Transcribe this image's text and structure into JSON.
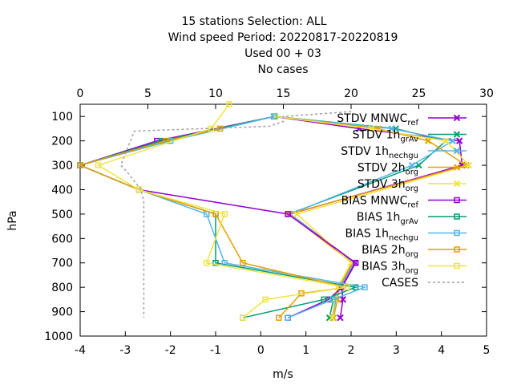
{
  "chart_data": {
    "type": "line",
    "title_lines": [
      "15 stations Selection: ALL",
      "Wind speed  Period: 20220817-20220819",
      "Used  00 + 03",
      "No cases"
    ],
    "xlabel": "m/s",
    "ylabel": "hPa",
    "xlim": [
      -4,
      5
    ],
    "x_ticks": [
      -4,
      -3,
      -2,
      -1,
      0,
      1,
      2,
      3,
      4,
      5
    ],
    "x_ticks_labels": [
      "-4",
      "-3",
      "-2",
      "-1",
      "0",
      "1",
      "2",
      "3",
      "4",
      "5"
    ],
    "x2lim": [
      0,
      30
    ],
    "x2_ticks": [
      0,
      5,
      10,
      15,
      20,
      25,
      30
    ],
    "x2_ticks_labels": [
      "0",
      "5",
      "10",
      "15",
      "20",
      "25",
      "30"
    ],
    "ylim": [
      1000,
      50
    ],
    "y_ticks": [
      100,
      200,
      300,
      400,
      500,
      600,
      700,
      800,
      900,
      1000
    ],
    "y_ticks_labels": [
      "100",
      "200",
      "300",
      "400",
      "500",
      "600",
      "700",
      "800",
      "900",
      "1000"
    ],
    "grid": false,
    "legend_position": "top-right",
    "series": [
      {
        "name": "STDV MNWC_ref",
        "legend": {
          "base": "STDV MNWC",
          "sub": "ref"
        },
        "axis": "top",
        "marker": "x",
        "dash": false,
        "color": "#9400d3",
        "x": [
          14.3,
          20.6,
          28.0,
          28.2,
          15.5,
          20.3,
          19.3,
          19.4,
          19.2
        ],
        "y": [
          100,
          150,
          200,
          300,
          500,
          700,
          800,
          850,
          925
        ]
      },
      {
        "name": "STDV 1h_grAv",
        "legend": {
          "base": "STDV 1h",
          "sub": "grAv"
        },
        "axis": "top",
        "marker": "x",
        "dash": false,
        "color": "#009e73",
        "x": [
          14.4,
          23.3,
          27.0,
          25.0,
          15.4,
          20.2,
          19.1,
          18.7,
          18.4
        ],
        "y": [
          100,
          150,
          200,
          300,
          500,
          700,
          800,
          850,
          925
        ]
      },
      {
        "name": "STDV 1h_nechgu",
        "legend": {
          "base": "STDV 1h",
          "sub": "nechgu"
        },
        "axis": "top",
        "marker": "x",
        "dash": false,
        "color": "#56b4e9",
        "x": [
          14.3,
          23.0,
          27.5,
          24.5,
          15.5,
          20.2,
          19.2,
          18.9,
          18.6
        ],
        "y": [
          100,
          150,
          200,
          300,
          500,
          700,
          800,
          850,
          925
        ]
      },
      {
        "name": "STDV 2h_org",
        "legend": {
          "base": "STDV 2h",
          "sub": "org"
        },
        "axis": "top",
        "marker": "x",
        "dash": false,
        "color": "#e69f00",
        "x": [
          14.4,
          22.0,
          25.7,
          28.5,
          15.4,
          20.1,
          19.1,
          19.0,
          18.7
        ],
        "y": [
          100,
          150,
          200,
          300,
          500,
          700,
          800,
          850,
          925
        ]
      },
      {
        "name": "STDV 3h_org",
        "legend": {
          "base": "STDV 3h",
          "sub": "org"
        },
        "axis": "top",
        "marker": "x",
        "dash": false,
        "color": "#f0e442",
        "x": [
          14.4,
          21.5,
          27.0,
          28.7,
          16.0,
          20.0,
          19.0,
          18.8,
          18.6
        ],
        "y": [
          100,
          150,
          200,
          300,
          500,
          700,
          800,
          850,
          925
        ]
      },
      {
        "name": "BIAS MNWC_ref",
        "legend": {
          "base": "BIAS MNWC",
          "sub": "ref"
        },
        "axis": "bottom",
        "marker": "square",
        "dash": false,
        "color": "#9400d3",
        "x": [
          0.3,
          -2.3,
          -4.0,
          -2.7,
          0.6,
          2.1,
          1.8,
          1.5,
          0.6
        ],
        "y": [
          100,
          200,
          300,
          400,
          500,
          700,
          800,
          850,
          925
        ]
      },
      {
        "name": "BIAS 1h_grAv",
        "legend": {
          "base": "BIAS 1h",
          "sub": "grAv"
        },
        "axis": "bottom",
        "marker": "square",
        "dash": false,
        "color": "#009e73",
        "x": [
          0.3,
          -2.2,
          -4.0,
          -2.7,
          -1.0,
          -1.0,
          2.1,
          1.4,
          -0.4
        ],
        "y": [
          100,
          200,
          300,
          400,
          500,
          700,
          800,
          850,
          925
        ]
      },
      {
        "name": "BIAS 1h_nechgu",
        "legend": {
          "base": "BIAS 1h",
          "sub": "nechgu"
        },
        "axis": "bottom",
        "marker": "square",
        "dash": false,
        "color": "#56b4e9",
        "x": [
          0.3,
          -2.0,
          -4.0,
          -2.7,
          -1.2,
          -0.8,
          2.3,
          1.6,
          0.6
        ],
        "y": [
          100,
          200,
          300,
          400,
          500,
          700,
          800,
          850,
          925
        ]
      },
      {
        "name": "BIAS 2h_org",
        "legend": {
          "base": "BIAS 2h",
          "sub": "org"
        },
        "axis": "bottom",
        "marker": "square",
        "dash": false,
        "color": "#e69f00",
        "x": [
          -0.9,
          -2.1,
          -4.0,
          -2.7,
          -1.0,
          -0.4,
          1.9,
          0.9,
          0.4
        ],
        "y": [
          150,
          200,
          300,
          400,
          500,
          700,
          800,
          825,
          925
        ]
      },
      {
        "name": "BIAS 3h_org",
        "legend": {
          "base": "BIAS 3h",
          "sub": "org"
        },
        "axis": "bottom",
        "marker": "square",
        "dash": false,
        "color": "#f0e442",
        "x": [
          -0.7,
          -1.1,
          -3.6,
          -2.7,
          -0.8,
          -1.2,
          1.9,
          0.1,
          -0.4
        ],
        "y": [
          50,
          150,
          300,
          400,
          500,
          700,
          800,
          850,
          925
        ]
      },
      {
        "name": "CASES",
        "legend": {
          "base": "CASES",
          "sub": ""
        },
        "axis": "top",
        "marker": "none",
        "dash": true,
        "color": "#a0a0a0",
        "x": [
          20.0,
          15.0,
          15.0,
          14.0,
          9.0,
          4.0,
          3.0,
          3.5,
          4.5,
          4.7,
          4.7,
          4.7,
          4.7
        ],
        "y": [
          80,
          100,
          120,
          140,
          150,
          160,
          300,
          330,
          400,
          450,
          500,
          700,
          925
        ]
      }
    ]
  }
}
